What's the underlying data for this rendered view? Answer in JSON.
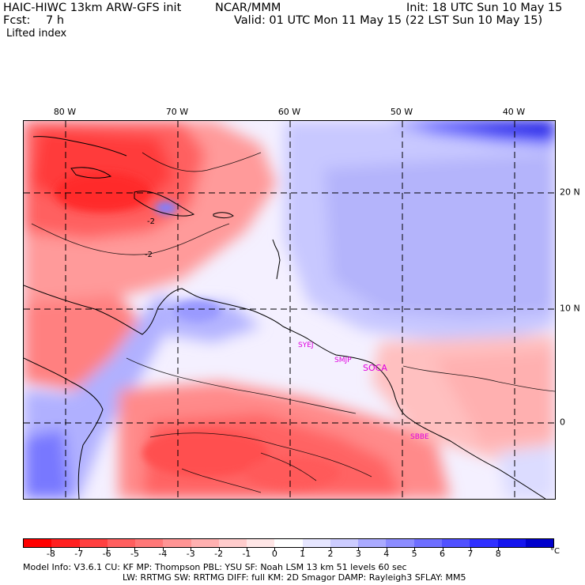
{
  "header": {
    "model": "HAIC-HIWC 13km ARW-GFS init",
    "org": "NCAR/MMM",
    "init": "Init: 18 UTC Sun 10 May 15",
    "fcst_label": "Fcst:",
    "fcst_value": "7 h",
    "valid": "Valid: 01 UTC Mon 11 May 15 (22 LST Sun 10 May 15)",
    "field": "Lifted index"
  },
  "map": {
    "longitudes": [
      "80 W",
      "70 W",
      "60 W",
      "50 W",
      "40 W"
    ],
    "latitudes": [
      "20 N",
      "10 N",
      "0"
    ],
    "contour_labels": [
      "-2",
      "-2"
    ],
    "stations": [
      "SYEJ",
      "SMJP",
      "SOCA",
      "SBBE"
    ]
  },
  "colorbar": {
    "labels": [
      "-8",
      "-7",
      "-6",
      "-5",
      "-4",
      "-3",
      "-2",
      "-1",
      "0",
      "1",
      "2",
      "3",
      "4",
      "5",
      "6",
      "7",
      "8"
    ],
    "unit": "°C",
    "colors": [
      "#ff0000",
      "#ff2020",
      "#ff4040",
      "#ff5f5f",
      "#ff7878",
      "#ff9494",
      "#ffb0b0",
      "#ffcccc",
      "#ffe6e6",
      "#ffffff",
      "#e6e6ff",
      "#ccccff",
      "#aaaaff",
      "#8c8cff",
      "#6e6eff",
      "#5050ff",
      "#3030ff",
      "#1414ee",
      "#0000cc"
    ]
  },
  "footer": {
    "line1": "Model Info: V3.6.1    CU: KF      MP: Thompson     PBL: YSU        SF: Noah LSM     13 km   51 levels   60 sec",
    "line2": "LW: RRTMG     SW: RRTMG   DIFF: full    KM: 2D Smagor DAMP: Rayleigh3  SFLAY: MM5"
  }
}
